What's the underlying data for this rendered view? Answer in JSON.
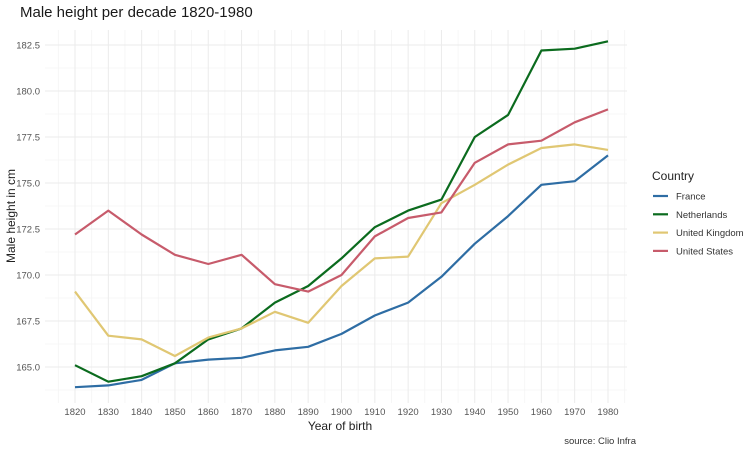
{
  "chart_data": {
    "type": "line",
    "title": "Male height per decade 1820-1980",
    "xlabel": "Year of birth",
    "ylabel": "Male height in cm",
    "caption": "source: Clio Infra",
    "x": [
      1820,
      1830,
      1840,
      1850,
      1860,
      1870,
      1880,
      1890,
      1900,
      1910,
      1920,
      1930,
      1940,
      1950,
      1960,
      1970,
      1980
    ],
    "x_ticks": [
      "1820",
      "1830",
      "1840",
      "1850",
      "1860",
      "1870",
      "1880",
      "1890",
      "1900",
      "1910",
      "1920",
      "1930",
      "1940",
      "1950",
      "1960",
      "1970",
      "1980"
    ],
    "y_ticks": [
      "165.0",
      "167.5",
      "170.0",
      "172.5",
      "175.0",
      "177.5",
      "180.0",
      "182.5"
    ],
    "xlim": [
      1815,
      1985
    ],
    "ylim": [
      163.0,
      183.5
    ],
    "grid": true,
    "legend": {
      "title": "Country",
      "placement": "right"
    },
    "series": [
      {
        "name": "France",
        "color": "#2e6da4",
        "values": [
          163.9,
          164.0,
          164.3,
          165.2,
          165.4,
          165.5,
          165.9,
          166.1,
          166.8,
          167.8,
          168.5,
          169.9,
          171.7,
          173.2,
          174.9,
          175.1,
          176.5
        ]
      },
      {
        "name": "Netherlands",
        "color": "#0b6b1e",
        "values": [
          165.1,
          164.2,
          164.5,
          165.2,
          166.5,
          167.1,
          168.5,
          169.4,
          170.9,
          172.6,
          173.5,
          174.1,
          177.5,
          178.7,
          182.2,
          182.3,
          182.7
        ]
      },
      {
        "name": "United Kingdom",
        "color": "#e0c773",
        "values": [
          169.1,
          166.7,
          166.5,
          165.6,
          166.6,
          167.1,
          168.0,
          167.4,
          169.4,
          170.9,
          171.0,
          173.9,
          174.9,
          176.0,
          176.9,
          177.1,
          176.8
        ]
      },
      {
        "name": "United States",
        "color": "#c75b6b",
        "values": [
          172.2,
          173.5,
          172.2,
          171.1,
          170.6,
          171.1,
          169.5,
          169.1,
          170.0,
          172.1,
          173.1,
          173.4,
          176.1,
          177.1,
          177.3,
          178.3,
          179.0
        ]
      }
    ]
  }
}
